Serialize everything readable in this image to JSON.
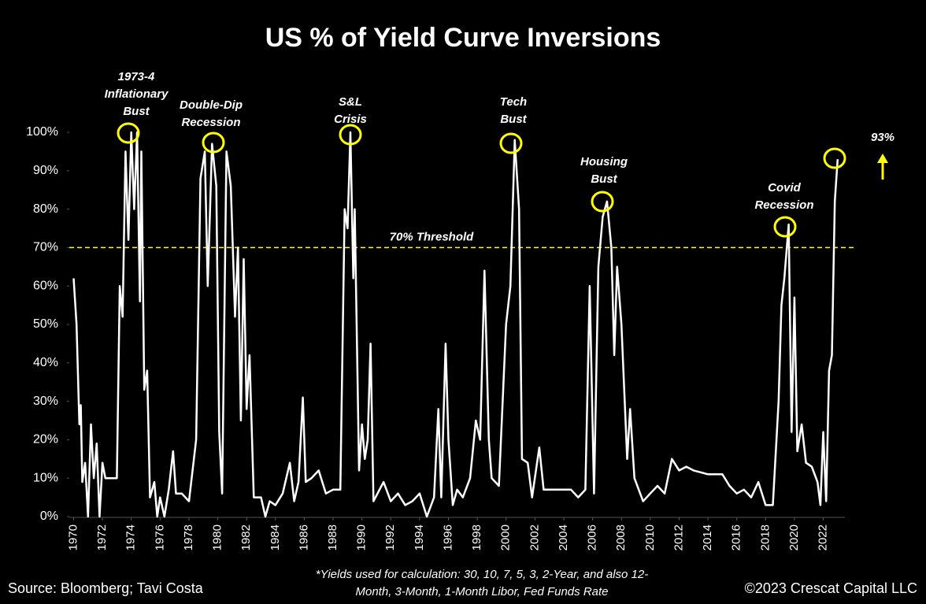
{
  "chart_data": {
    "type": "line",
    "title": "US % of Yield Curve Inversions",
    "color": "#ffffff",
    "accent_color": "#ffff00",
    "x": [
      1970.0,
      1970.2,
      1970.4,
      1970.5,
      1970.6,
      1970.8,
      1971.0,
      1971.2,
      1971.4,
      1971.6,
      1971.8,
      1972.0,
      1972.2,
      1972.5,
      1973.0,
      1973.2,
      1973.4,
      1973.6,
      1973.8,
      1974.0,
      1974.2,
      1974.4,
      1974.6,
      1974.7,
      1974.9,
      1975.1,
      1975.3,
      1975.6,
      1975.8,
      1976.0,
      1976.3,
      1976.6,
      1976.9,
      1977.1,
      1977.5,
      1978.0,
      1978.5,
      1978.8,
      1979.1,
      1979.3,
      1979.6,
      1979.9,
      1980.1,
      1980.3,
      1980.6,
      1980.9,
      1981.2,
      1981.4,
      1981.6,
      1981.8,
      1982.0,
      1982.2,
      1982.5,
      1983.0,
      1983.3,
      1983.6,
      1984.0,
      1984.5,
      1985.0,
      1985.3,
      1985.6,
      1985.9,
      1986.1,
      1986.5,
      1987.0,
      1987.5,
      1988.0,
      1988.5,
      1988.8,
      1989.0,
      1989.2,
      1989.4,
      1989.5,
      1989.8,
      1990.0,
      1990.2,
      1990.4,
      1990.6,
      1990.8,
      1991.5,
      1992.0,
      1992.5,
      1993.0,
      1993.5,
      1994.0,
      1994.5,
      1995.0,
      1995.3,
      1995.5,
      1995.8,
      1996.0,
      1996.3,
      1996.6,
      1997.0,
      1997.5,
      1997.9,
      1998.2,
      1998.5,
      1998.8,
      1999.0,
      1999.5,
      2000.0,
      2000.3,
      2000.6,
      2000.9,
      2001.1,
      2001.5,
      2001.8,
      2002.3,
      2002.6,
      2003.5,
      2004.5,
      2005.0,
      2005.5,
      2005.8,
      2006.1,
      2006.4,
      2006.7,
      2007.0,
      2007.3,
      2007.5,
      2007.7,
      2008.0,
      2008.4,
      2008.6,
      2008.9,
      2009.5,
      2010.0,
      2010.5,
      2011.0,
      2011.5,
      2012.0,
      2012.5,
      2013.0,
      2014.0,
      2015.0,
      2015.5,
      2016.0,
      2016.5,
      2017.0,
      2017.5,
      2018.0,
      2018.5,
      2018.9,
      2019.1,
      2019.3,
      2019.6,
      2019.8,
      2020.0,
      2020.2,
      2020.5,
      2020.8,
      2021.2,
      2021.6,
      2021.8,
      2022.0,
      2022.2,
      2022.4,
      2022.6,
      2022.8,
      2023.0
    ],
    "values": [
      62,
      50,
      24,
      29,
      9,
      14,
      0,
      24,
      10,
      19,
      0,
      14,
      10,
      10,
      10,
      60,
      52,
      95,
      72,
      100,
      80,
      100,
      56,
      95,
      33,
      38,
      5,
      9,
      0,
      5,
      0,
      7,
      17,
      6,
      6,
      4,
      20,
      88,
      95,
      60,
      97,
      86,
      22,
      6,
      95,
      86,
      52,
      70,
      25,
      67,
      28,
      42,
      5,
      5,
      0,
      4,
      3,
      6,
      14,
      4,
      9,
      31,
      9,
      10,
      12,
      6,
      7,
      7,
      80,
      75,
      100,
      62,
      80,
      12,
      24,
      15,
      20,
      45,
      4,
      9,
      4,
      6,
      3,
      4,
      6,
      0,
      5,
      28,
      5,
      45,
      20,
      3,
      7,
      5,
      10,
      25,
      20,
      64,
      20,
      10,
      8,
      50,
      60,
      98,
      80,
      15,
      14,
      5,
      18,
      7,
      7,
      7,
      5,
      7,
      60,
      6,
      65,
      78,
      82,
      70,
      42,
      65,
      50,
      15,
      28,
      10,
      4,
      6,
      8,
      6,
      15,
      12,
      13,
      12,
      11,
      11,
      8,
      6,
      7,
      5,
      9,
      3,
      3,
      30,
      55,
      62,
      76,
      22,
      57,
      17,
      24,
      14,
      13,
      9,
      3,
      22,
      4,
      38,
      42,
      82,
      93
    ],
    "xlim": [
      1969.7,
      2023.5
    ],
    "xticks": [
      1970,
      1972,
      1974,
      1976,
      1978,
      1980,
      1982,
      1984,
      1986,
      1988,
      1990,
      1992,
      1994,
      1996,
      1998,
      2000,
      2002,
      2004,
      2006,
      2008,
      2010,
      2012,
      2014,
      2016,
      2018,
      2020,
      2022
    ],
    "ylim": [
      0,
      100
    ],
    "yticks": [
      {
        "value": 0,
        "label": "0%"
      },
      {
        "value": 10,
        "label": "10%"
      },
      {
        "value": 20,
        "label": "20%"
      },
      {
        "value": 30,
        "label": "30%"
      },
      {
        "value": 40,
        "label": "40%"
      },
      {
        "value": 50,
        "label": "50%"
      },
      {
        "value": 60,
        "label": "60%"
      },
      {
        "value": 70,
        "label": "70%"
      },
      {
        "value": 80,
        "label": "80%"
      },
      {
        "value": 90,
        "label": "90%"
      },
      {
        "value": 100,
        "label": "100%"
      }
    ],
    "grid": false,
    "threshold": {
      "value": 70,
      "label": "70% Threshold"
    },
    "annotations": [
      {
        "lines": [
          "1973-4",
          "Inflationary",
          "Bust"
        ]
      },
      {
        "lines": [
          "Double-Dip",
          "Recession"
        ]
      },
      {
        "lines": [
          "S&L",
          "Crisis"
        ]
      },
      {
        "lines": [
          "Tech",
          "Bust"
        ]
      },
      {
        "lines": [
          "Housing",
          "Bust"
        ]
      },
      {
        "lines": [
          "Covid",
          "Recession"
        ]
      },
      {
        "lines": [
          "93%"
        ]
      }
    ],
    "source": "Source: Bloomberg; Tavi Costa",
    "note": [
      "*Yields used for calculation: 30, 10, 7, 5, 3, 2-Year, and also 12-",
      "Month, 3-Month, 1-Month Libor, Fed Funds Rate"
    ],
    "copyright": "©2023 Crescat Capital LLC"
  }
}
